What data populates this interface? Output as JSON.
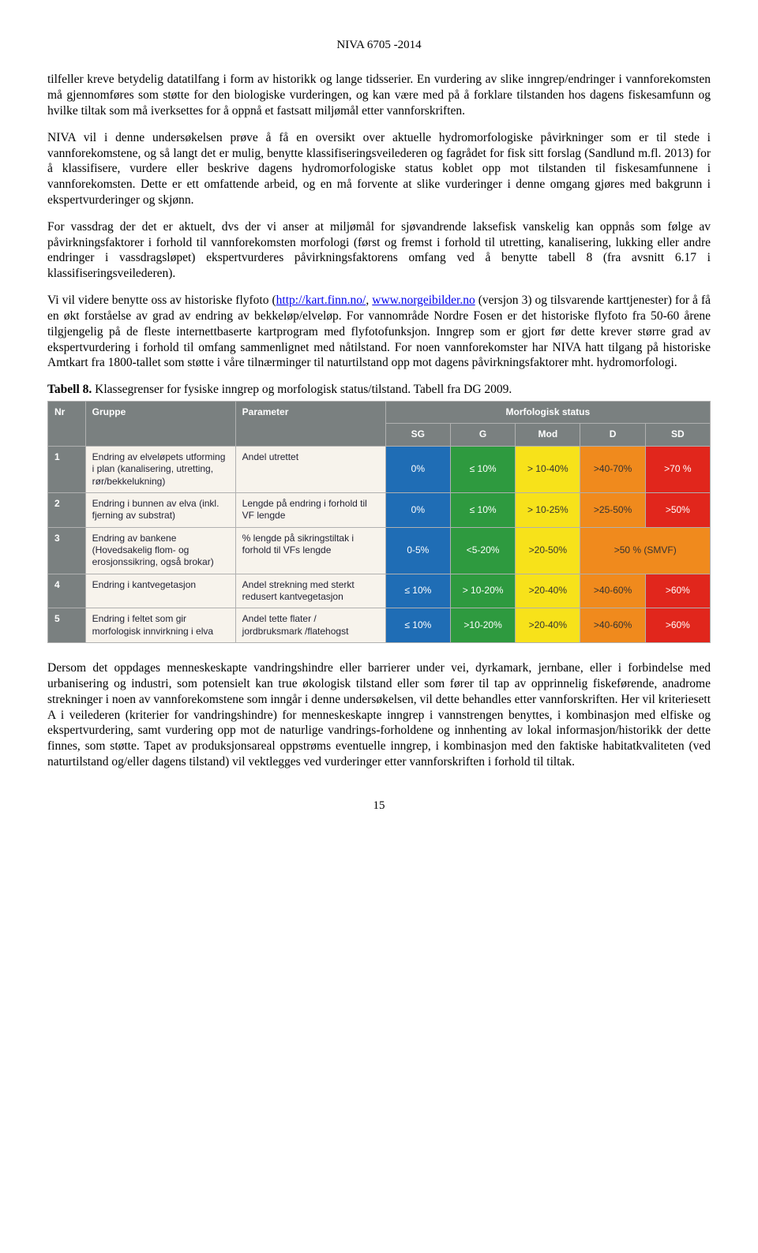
{
  "header": "NIVA 6705 -2014",
  "paragraphs": {
    "p1": "tilfeller kreve betydelig datatilfang i form av historikk og lange tidsserier. En vurdering av slike inngrep/endringer i vannforekomsten må gjennomføres som støtte for den biologiske vurderingen, og kan være med på å forklare tilstanden hos dagens fiskesamfunn og hvilke tiltak som må iverksettes for å oppnå et fastsatt miljømål etter vannforskriften.",
    "p2": "NIVA vil i denne undersøkelsen prøve å få en oversikt over aktuelle hydromorfologiske påvirkninger som er til stede i vannforekomstene, og så langt det er mulig, benytte klassifiseringsveilederen og fagrådet for fisk sitt forslag (Sandlund m.fl. 2013) for å klassifisere, vurdere eller beskrive dagens hydromorfologiske status koblet opp mot tilstanden til fiskesamfunnene i vannforekomsten. Dette er ett omfattende arbeid, og en må forvente at slike vurderinger i denne omgang gjøres med bakgrunn i ekspertvurderinger og skjønn.",
    "p3": "For vassdrag der det er aktuelt, dvs der vi anser at miljømål for sjøvandrende laksefisk vanskelig kan oppnås som følge av påvirkningsfaktorer i forhold til vannforekomsten morfologi (først og fremst i forhold til utretting, kanalisering, lukking eller andre endringer i vassdragsløpet) ekspertvurderes påvirkningsfaktorens omfang ved å benytte tabell 8 (fra avsnitt 6.17 i klassifiseringsveilederen).",
    "p4a": "Vi vil videre benytte oss av historiske flyfoto (",
    "link1_text": "http://kart.finn.no/",
    "p4b": ", ",
    "link2_text": "www.norgeibilder.no",
    "p4c": " (versjon 3) og tilsvarende karttjenester) for å få en økt forståelse av grad av endring av bekkeløp/elveløp. For vannområde Nordre Fosen er det historiske flyfoto fra 50-60 årene tilgjengelig på de fleste internettbaserte kartprogram med flyfotofunksjon. Inngrep som er gjort før dette krever større grad av ekspertvurdering i forhold til omfang sammenlignet med nåtilstand. For noen vannforekomster har NIVA hatt tilgang på historiske Amtkart fra 1800-tallet som støtte i våre tilnærminger til naturtilstand opp mot dagens påvirkningsfaktorer mht. hydromorfologi.",
    "p5": "Dersom det oppdages menneskeskapte vandringshindre eller barrierer under vei, dyrkamark, jernbane, eller i forbindelse med urbanisering og industri, som potensielt kan true økologisk tilstand eller som fører til tap av opprinnelig fiskeførende, anadrome strekninger i noen av vannforekomstene som inngår i denne undersøkelsen, vil dette behandles etter vannforskriften. Her vil kriteriesett A i veilederen (kriterier for vandringshindre) for menneskeskapte inngrep i vannstrengen benyttes, i kombinasjon med elfiske og ekspertvurdering, samt vurdering opp mot de naturlige vandrings-forholdene og innhenting av lokal informasjon/historikk der dette finnes, som støtte. Tapet av produksjonsareal oppstrøms eventuelle inngrep, i kombinasjon med den faktiske habitatkvaliteten (ved naturtilstand og/eller dagens tilstand) vil vektlegges ved vurderinger etter vannforskriften i forhold til tiltak."
  },
  "table_caption_bold": "Tabell 8.",
  "table_caption_rest": " Klassegrenser for fysiske inngrep og morfologisk status/tilstand. Tabell fra DG 2009.",
  "table": {
    "header_bg": "#7a8080",
    "header_fg": "#ffffff",
    "body_bg": "#f7f3ec",
    "colors": {
      "SG": "#1f6db5",
      "G": "#2e9a3f",
      "Mod": "#f7e21a",
      "D": "#f08a1d",
      "SD": "#e1261c"
    },
    "text_colors": {
      "SG": "#ffffff",
      "G": "#ffffff",
      "Mod": "#333333",
      "D": "#333333",
      "SD": "#ffffff"
    },
    "headers": {
      "nr": "Nr",
      "gruppe": "Gruppe",
      "parameter": "Parameter",
      "status": "Morfologisk status",
      "sub": [
        "SG",
        "G",
        "Mod",
        "D",
        "SD"
      ]
    },
    "rows": [
      {
        "nr": "1",
        "gruppe": "Endring av elveløpets utforming i plan (kanalisering, utretting, rør/bekkelukning)",
        "param": "Andel utrettet",
        "cells": [
          "0%",
          "≤ 10%",
          "> 10-40%",
          ">40-70%",
          ">70 %"
        ]
      },
      {
        "nr": "2",
        "gruppe": "Endring i bunnen av elva (inkl. fjerning av substrat)",
        "param": "Lengde på endring i forhold til VF lengde",
        "cells": [
          "0%",
          "≤ 10%",
          "> 10-25%",
          ">25-50%",
          ">50%"
        ]
      },
      {
        "nr": "3",
        "gruppe": "Endring av bankene (Hovedsakelig flom- og erosjonssikring, også brokar)",
        "param": "% lengde på sikringstiltak i forhold til VFs lengde",
        "cells": [
          "0-5%",
          "<5-20%",
          ">20-50%",
          ">50 % (SMVF)",
          ""
        ]
      },
      {
        "nr": "4",
        "gruppe": "Endring i kantvegetasjon",
        "param": "Andel strekning med sterkt redusert kantvegetasjon",
        "cells": [
          "≤ 10%",
          "> 10-20%",
          ">20-40%",
          ">40-60%",
          ">60%"
        ]
      },
      {
        "nr": "5",
        "gruppe": "Endring i feltet som gir morfologisk innvirkning i elva",
        "param": "Andel tette flater / jordbruksmark /flatehogst",
        "cells": [
          "≤ 10%",
          ">10-20%",
          ">20-40%",
          ">40-60%",
          ">60%"
        ]
      }
    ]
  },
  "page_number": "15"
}
